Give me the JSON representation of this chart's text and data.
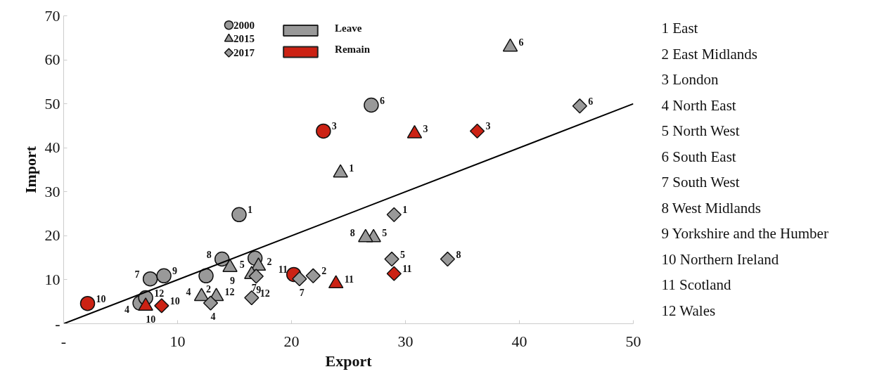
{
  "chart_data": {
    "type": "scatter",
    "xlabel": "Export",
    "ylabel": "Import",
    "xlim": [
      0,
      50
    ],
    "ylim": [
      0,
      70
    ],
    "xticks": [
      {
        "value": 0,
        "label": "-"
      },
      10,
      20,
      30,
      40,
      50
    ],
    "yticks": [
      {
        "value": 0,
        "label": "-"
      },
      10,
      20,
      30,
      40,
      50,
      60,
      70
    ],
    "legend": "top",
    "grid": false,
    "series": [
      {
        "name": "2000",
        "marker": "circle",
        "x": [
          15.4,
          12.5,
          22.8,
          6.7,
          16.8,
          27.0,
          7.6,
          13.9,
          8.8,
          2.1,
          20.2,
          7.2
        ],
        "values": [
          24.8,
          10.9,
          43.8,
          4.7,
          14.9,
          49.7,
          10.2,
          14.7,
          10.9,
          4.6,
          11.2,
          5.9
        ],
        "colors": [
          "#999999",
          "#999999",
          "#cc2214",
          "#999999",
          "#999999",
          "#999999",
          "#999999",
          "#999999",
          "#999999",
          "#cc2214",
          "#cc2214",
          "#999999"
        ]
      },
      {
        "name": "2015",
        "marker": "triangle",
        "x": [
          24.3,
          17.1,
          30.8,
          12.1,
          27.2,
          39.2,
          16.5,
          26.5,
          14.6,
          7.2,
          23.9,
          13.4
        ],
        "values": [
          34.3,
          13.1,
          43.2,
          6.2,
          19.6,
          62.9,
          11.2,
          19.6,
          12.8,
          4.0,
          9.1,
          6.2
        ],
        "colors": [
          "#999999",
          "#999999",
          "#cc2214",
          "#999999",
          "#999999",
          "#999999",
          "#999999",
          "#999999",
          "#999999",
          "#cc2214",
          "#cc2214",
          "#999999"
        ]
      },
      {
        "name": "2017",
        "marker": "diamond",
        "x": [
          29.0,
          21.9,
          36.3,
          12.9,
          28.8,
          45.3,
          20.7,
          33.7,
          16.9,
          8.6,
          29.0,
          16.5
        ],
        "values": [
          24.8,
          10.9,
          43.8,
          4.7,
          14.7,
          49.5,
          10.2,
          14.7,
          10.8,
          4.1,
          11.4,
          5.9
        ],
        "colors": [
          "#999999",
          "#999999",
          "#cc2214",
          "#999999",
          "#999999",
          "#999999",
          "#999999",
          "#999999",
          "#999999",
          "#cc2214",
          "#cc2214",
          "#999999"
        ]
      },
      {
        "name": "Leave",
        "type": "bar",
        "color": "#999999"
      },
      {
        "name": "Remain",
        "type": "bar",
        "color": "#cc2214"
      },
      {
        "type": "line",
        "color": "#000000",
        "x": [
          0,
          50
        ],
        "values": [
          0,
          50
        ]
      }
    ],
    "annotations": [
      "1 East",
      "2 East Midlands",
      "3 London",
      "4 North East",
      "5 North West",
      "6 South East",
      "7 South West",
      "8 West Midlands",
      "9 Yorkshire and the Humber",
      "10 Northern Ireland",
      "11 Scotland",
      "12 Wales",
      {
        "text": "1",
        "x": 15.4,
        "y": 24.8
      },
      {
        "text": "2",
        "x": 12.5,
        "y": 10.9
      },
      {
        "text": "3",
        "x": 22.8,
        "y": 43.8
      },
      {
        "text": "4",
        "x": 6.7,
        "y": 4.7
      },
      {
        "text": "5",
        "x": 16.8,
        "y": 14.9
      },
      {
        "text": "6",
        "x": 27.0,
        "y": 49.7
      },
      {
        "text": "7",
        "x": 7.6,
        "y": 10.2
      },
      {
        "text": "8",
        "x": 13.9,
        "y": 14.7
      },
      {
        "text": "9",
        "x": 8.8,
        "y": 10.9
      },
      {
        "text": "10",
        "x": 2.1,
        "y": 4.6
      },
      {
        "text": "11",
        "x": 20.2,
        "y": 11.2
      },
      {
        "text": "12",
        "x": 7.2,
        "y": 5.9
      },
      {
        "text": "1",
        "x": 24.3,
        "y": 34.3
      },
      {
        "text": "2",
        "x": 17.1,
        "y": 13.1
      },
      {
        "text": "3",
        "x": 30.8,
        "y": 43.2
      },
      {
        "text": "4",
        "x": 12.1,
        "y": 6.2
      },
      {
        "text": "5",
        "x": 27.2,
        "y": 19.6
      },
      {
        "text": "6",
        "x": 39.2,
        "y": 62.9
      },
      {
        "text": "7",
        "x": 16.5,
        "y": 11.2
      },
      {
        "text": "8",
        "x": 26.5,
        "y": 19.6
      },
      {
        "text": "9",
        "x": 14.6,
        "y": 12.8
      },
      {
        "text": "10",
        "x": 7.2,
        "y": 4.0
      },
      {
        "text": "11",
        "x": 23.9,
        "y": 9.1
      },
      {
        "text": "12",
        "x": 13.4,
        "y": 6.2
      },
      {
        "text": "1",
        "x": 29.0,
        "y": 24.8
      },
      {
        "text": "2",
        "x": 21.9,
        "y": 10.9
      },
      {
        "text": "3",
        "x": 36.3,
        "y": 43.8
      },
      {
        "text": "4",
        "x": 12.9,
        "y": 4.7
      },
      {
        "text": "5",
        "x": 28.8,
        "y": 14.7
      },
      {
        "text": "6",
        "x": 45.3,
        "y": 49.5
      },
      {
        "text": "7",
        "x": 20.7,
        "y": 10.2
      },
      {
        "text": "8",
        "x": 33.7,
        "y": 14.7
      },
      {
        "text": "9",
        "x": 16.9,
        "y": 10.8
      },
      {
        "text": "10",
        "x": 8.6,
        "y": 4.1
      },
      {
        "text": "11",
        "x": 29.0,
        "y": 11.4
      },
      {
        "text": "12",
        "x": 16.5,
        "y": 5.9
      }
    ]
  }
}
